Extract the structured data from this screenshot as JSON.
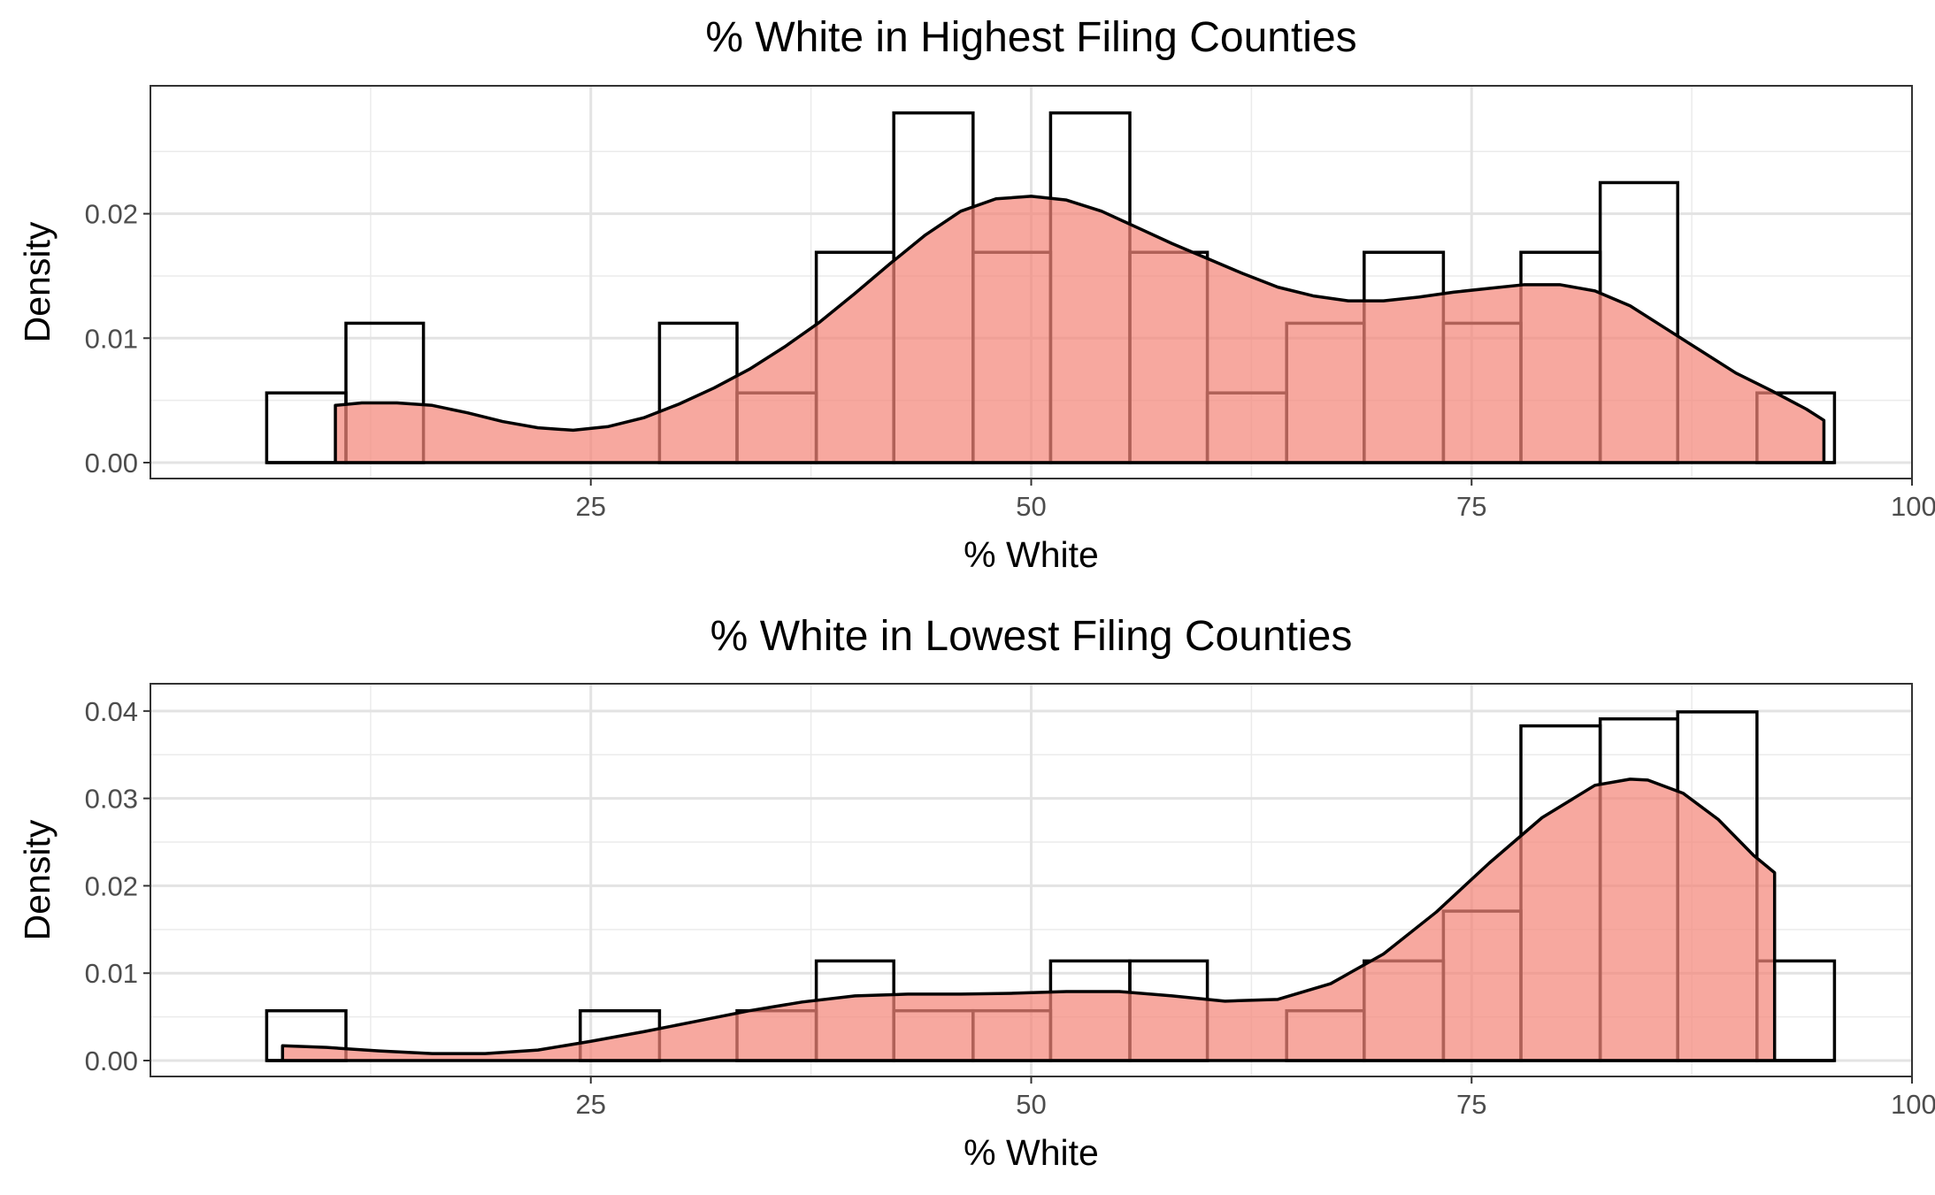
{
  "chart_data": [
    {
      "type": "bar",
      "title": "% White in Highest Filing Counties",
      "xlabel": "% White",
      "ylabel": "Density",
      "xlim": [
        0,
        100
      ],
      "ylim": [
        0,
        0.029
      ],
      "x_ticks": [
        25,
        50,
        75,
        100
      ],
      "x_tick_labels": [
        "25",
        "50",
        "75",
        "100"
      ],
      "y_ticks": [
        0,
        0.01,
        0.02
      ],
      "y_tick_labels": [
        "0.00",
        "0.01",
        "0.02"
      ],
      "grid": true,
      "histogram": {
        "bin_edges": [
          6.6,
          11.1,
          15.5,
          20.0,
          24.4,
          28.9,
          33.3,
          37.8,
          42.2,
          46.7,
          51.1,
          55.6,
          60.0,
          64.5,
          68.9,
          73.4,
          77.8,
          82.3,
          86.7,
          91.2,
          95.6
        ],
        "density": [
          0.0056,
          0.0112,
          0,
          0,
          0,
          0.0112,
          0.0056,
          0.0169,
          0.0281,
          0.0169,
          0.0281,
          0.0169,
          0.0056,
          0.0112,
          0.0169,
          0.0112,
          0.0169,
          0.0225,
          0,
          0.0056
        ]
      },
      "density_curve": {
        "x": [
          10.5,
          12,
          14,
          16,
          18,
          20,
          22,
          24,
          26,
          28,
          30,
          32,
          34,
          36,
          38,
          40,
          42,
          44,
          46,
          48,
          50,
          52,
          54,
          56,
          58,
          60,
          62,
          64,
          66,
          68,
          70,
          72,
          74,
          76,
          78,
          80,
          82,
          84,
          86,
          88,
          90,
          92,
          94,
          95
        ],
        "y": [
          0.0046,
          0.0048,
          0.0048,
          0.0046,
          0.004,
          0.0033,
          0.0028,
          0.0026,
          0.0029,
          0.0036,
          0.0047,
          0.006,
          0.0075,
          0.0093,
          0.0113,
          0.0136,
          0.016,
          0.0183,
          0.0202,
          0.0212,
          0.0214,
          0.0211,
          0.0202,
          0.0189,
          0.0176,
          0.0164,
          0.0152,
          0.0141,
          0.0134,
          0.013,
          0.013,
          0.0133,
          0.0137,
          0.014,
          0.0143,
          0.0143,
          0.0138,
          0.0126,
          0.0108,
          0.009,
          0.0072,
          0.0058,
          0.0043,
          0.0034
        ]
      },
      "colors": {
        "fill": "#f4877a",
        "bar_outline": "#000000",
        "curve": "#000000"
      }
    },
    {
      "type": "bar",
      "title": "% White in Lowest Filing Counties",
      "xlabel": "% White",
      "ylabel": "Density",
      "xlim": [
        0,
        100
      ],
      "ylim": [
        0,
        0.0413
      ],
      "x_ticks": [
        25,
        50,
        75,
        100
      ],
      "x_tick_labels": [
        "25",
        "50",
        "75",
        "100"
      ],
      "y_ticks": [
        0,
        0.01,
        0.02,
        0.03,
        0.04
      ],
      "y_tick_labels": [
        "0.00",
        "0.01",
        "0.02",
        "0.03",
        "0.04"
      ],
      "grid": true,
      "histogram": {
        "bin_edges": [
          6.6,
          11.1,
          15.5,
          20.0,
          24.4,
          28.9,
          33.3,
          37.8,
          42.2,
          46.7,
          51.1,
          55.6,
          60.0,
          64.5,
          68.9,
          73.4,
          77.8,
          82.3,
          86.7,
          91.2,
          95.6
        ],
        "density": [
          0.0057,
          0,
          0,
          0,
          0.0057,
          0,
          0.0057,
          0.0114,
          0.0057,
          0.0057,
          0.0114,
          0.0114,
          0,
          0.0057,
          0.0114,
          0.0171,
          0.0383,
          0.0391,
          0.0399,
          0.0114
        ]
      },
      "density_curve": {
        "x": [
          7.5,
          10,
          13,
          16,
          19,
          22,
          25,
          28,
          31,
          34,
          37,
          40,
          43,
          46,
          49,
          52,
          55,
          58,
          61,
          64,
          67,
          70,
          73,
          76,
          79,
          82,
          84,
          85,
          87,
          89,
          91,
          92.2
        ],
        "y": [
          0.0017,
          0.0015,
          0.0011,
          0.0008,
          0.0008,
          0.0012,
          0.0022,
          0.0033,
          0.0045,
          0.0057,
          0.0067,
          0.0074,
          0.0076,
          0.0076,
          0.0077,
          0.0079,
          0.0079,
          0.0074,
          0.0068,
          0.007,
          0.0088,
          0.0122,
          0.017,
          0.0226,
          0.0278,
          0.0315,
          0.0322,
          0.0321,
          0.0306,
          0.0276,
          0.0235,
          0.0215
        ]
      },
      "colors": {
        "fill": "#f4877a",
        "bar_outline": "#000000",
        "curve": "#000000"
      }
    }
  ]
}
